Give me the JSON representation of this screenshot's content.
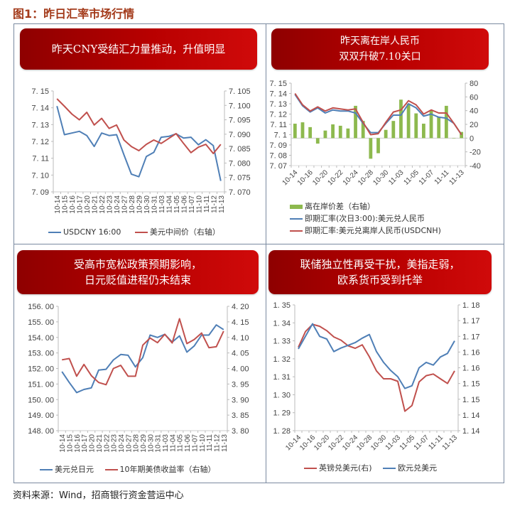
{
  "figure_title": "图1：昨日汇率市场行情",
  "source": "资料来源：Wind，招商银行资金营运中心",
  "colors": {
    "banner_red": "#b80000",
    "blue": "#4f7fb6",
    "red": "#c0504d",
    "green": "#8db94e"
  },
  "panels": [
    {
      "title": [
        "昨天CNY受结汇力量推动，升值明显"
      ]
    },
    {
      "title": [
        "昨天离在岸人民币",
        "双双升破7.10关口"
      ]
    },
    {
      "title": [
        "受高市宽松政策预期影响，",
        "日元贬值进程仍未结束"
      ]
    },
    {
      "title": [
        "联储独立性再受干扰，美指走弱，",
        "欧系货币受到托举"
      ]
    }
  ],
  "chart_data": [
    {
      "type": "line",
      "title": "昨天CNY受结汇力量推动，升值明显",
      "categories": [
        "10-14",
        "10-15",
        "10-16",
        "10-17",
        "10-20",
        "10-21",
        "10-22",
        "10-23",
        "10-24",
        "10-27",
        "10-28",
        "10-29",
        "10-30",
        "10-31",
        "11-03",
        "11-04",
        "11-05",
        "11-06",
        "11-07",
        "11-10",
        "11-11",
        "11-12",
        "11-13"
      ],
      "y_ticks": [
        "7.15",
        "7.14",
        "7.13",
        "7.12",
        "7.11",
        "7.10",
        "7.09"
      ],
      "y2_ticks": [
        "7.105",
        "7.100",
        "7.095",
        "7.090",
        "7.085",
        "7.080",
        "7.075",
        "7.070"
      ],
      "ylim": [
        7.09,
        7.15
      ],
      "y2lim": [
        7.07,
        7.105
      ],
      "series": [
        {
          "name": "USDCNY 16:00",
          "axis": "left",
          "color": "#4f7fb6",
          "values": [
            7.141,
            7.124,
            7.125,
            7.126,
            7.1235,
            7.117,
            7.125,
            7.1235,
            7.124,
            7.112,
            7.1005,
            7.099,
            7.111,
            7.1135,
            7.1225,
            7.123,
            7.1245,
            7.122,
            7.1225,
            7.118,
            7.121,
            7.1175,
            7.0965
          ]
        },
        {
          "name": "美元中间价（右轴）",
          "axis": "right",
          "color": "#c0504d",
          "values": [
            7.1023,
            7.0997,
            7.097,
            7.095,
            7.0976,
            7.0932,
            7.0955,
            7.092,
            7.0932,
            7.088,
            7.0857,
            7.0843,
            7.0865,
            7.088,
            7.0868,
            7.0885,
            7.0902,
            7.0868,
            7.0836,
            7.0855,
            7.0865,
            7.0833,
            7.0865
          ]
        }
      ],
      "legend": [
        "USDCNY 16:00",
        "美元中间价（右轴）"
      ]
    },
    {
      "type": "bar+line",
      "title": "昨天离在岸人民币双双升破7.10关口",
      "categories": [
        "10-14",
        "10-15",
        "10-16",
        "10-17",
        "10-20",
        "10-21",
        "10-22",
        "10-23",
        "10-24",
        "10-27",
        "10-28",
        "10-29",
        "10-30",
        "10-31",
        "11-03",
        "11-04",
        "11-05",
        "11-06",
        "11-07",
        "11-10",
        "11-11",
        "11-12",
        "11-13"
      ],
      "x_tick_labels": [
        "10-14",
        "10-16",
        "10-20",
        "10-22",
        "10-24",
        "10-28",
        "10-30",
        "11-03",
        "11-05",
        "11-07",
        "11-11",
        "11-13"
      ],
      "y_ticks": [
        "7.15",
        "7.14",
        "7.13",
        "7.12",
        "7.11",
        "7.1",
        "7.09",
        "7.08",
        "7.07"
      ],
      "y2_ticks": [
        "80",
        "60",
        "40",
        "20",
        "0",
        "-20",
        "-40"
      ],
      "ylim": [
        7.07,
        7.15
      ],
      "y2lim": [
        -40,
        80
      ],
      "series": [
        {
          "name": "离在岸价差（右轴）",
          "type": "bar",
          "axis": "right",
          "color": "#8db94e",
          "values": [
            21,
            23,
            16,
            -8,
            11,
            20,
            18,
            14,
            47,
            25,
            -30,
            -22,
            12,
            25,
            56,
            50,
            36,
            21,
            40,
            31,
            47,
            0,
            9
          ]
        },
        {
          "name": "即期汇率(次日3:00):美元兑人民币",
          "type": "line",
          "axis": "left",
          "color": "#4f7fb6",
          "values": [
            7.139,
            7.128,
            7.122,
            7.126,
            7.121,
            7.124,
            7.123,
            7.123,
            7.121,
            7.111,
            7.102,
            7.102,
            7.111,
            7.119,
            7.119,
            7.13,
            7.126,
            7.118,
            7.12,
            7.117,
            7.116,
            7.111,
            7.1
          ]
        },
        {
          "name": "即期汇率:美元兑离岸人民币(USDCNH)",
          "type": "line",
          "axis": "left",
          "color": "#c0504d",
          "values": [
            7.14,
            7.129,
            7.123,
            7.127,
            7.123,
            7.126,
            7.125,
            7.124,
            7.125,
            7.112,
            7.1,
            7.101,
            7.112,
            7.122,
            7.124,
            7.133,
            7.129,
            7.12,
            7.124,
            7.121,
            7.121,
            7.111,
            7.1
          ]
        }
      ],
      "legend": [
        "离在岸价差（右轴）",
        "即期汇率(次日3:00):美元兑人民币",
        "即期汇率:美元兑离岸人民币(USDCNH)"
      ]
    },
    {
      "type": "line",
      "title": "受高市宽松政策预期影响，日元贬值进程仍未结束",
      "categories": [
        "10-14",
        "10-15",
        "10-16",
        "10-17",
        "10-20",
        "10-21",
        "10-22",
        "10-23",
        "10-24",
        "10-27",
        "10-28",
        "10-29",
        "10-30",
        "10-31",
        "11-03",
        "11-04",
        "11-05",
        "11-06",
        "11-07",
        "11-10",
        "11-11",
        "11-12",
        "11-13"
      ],
      "y_ticks": [
        "156.00",
        "155.00",
        "154.00",
        "153.00",
        "152.00",
        "151.00",
        "150.00",
        "149.00",
        "148.00"
      ],
      "y2_ticks": [
        "4.20",
        "4.15",
        "4.10",
        "4.05",
        "4.00",
        "3.95",
        "3.90",
        "3.85",
        "3.80"
      ],
      "ylim": [
        148,
        156
      ],
      "y2lim": [
        3.8,
        4.2
      ],
      "series": [
        {
          "name": "美元兑日元",
          "axis": "left",
          "color": "#4f7fb6",
          "values": [
            151.8,
            151.1,
            150.45,
            150.65,
            150.75,
            151.9,
            151.95,
            152.55,
            152.9,
            152.85,
            152.1,
            152.7,
            154.15,
            154.0,
            154.2,
            153.7,
            154.1,
            153.05,
            153.45,
            154.15,
            154.15,
            154.8,
            154.5
          ]
        },
        {
          "name": "10年期美债收益率（右轴）",
          "axis": "right",
          "color": "#c0504d",
          "values": [
            4.028,
            4.032,
            3.975,
            4.013,
            3.977,
            3.955,
            3.948,
            4.0,
            4.01,
            3.975,
            3.975,
            4.075,
            4.098,
            4.083,
            4.11,
            4.082,
            4.16,
            4.08,
            4.093,
            4.114,
            4.067,
            4.07,
            4.12
          ]
        }
      ],
      "legend": [
        "美元兑日元",
        "10年期美债收益率（右轴）"
      ]
    },
    {
      "type": "line",
      "title": "联储独立性再受干扰，美指走弱，欧系货币受到托举",
      "categories": [
        "10-14",
        "10-15",
        "10-16",
        "10-17",
        "10-20",
        "10-21",
        "10-22",
        "10-23",
        "10-24",
        "10-27",
        "10-28",
        "10-29",
        "10-30",
        "10-31",
        "11-03",
        "11-04",
        "11-05",
        "11-06",
        "11-07",
        "11-10",
        "11-11",
        "11-12",
        "11-13"
      ],
      "x_tick_labels": [
        "10-14",
        "10-16",
        "10-20",
        "10-22",
        "10-24",
        "10-28",
        "10-30",
        "11-03",
        "11-05",
        "11-07",
        "11-11",
        "11-13"
      ],
      "y_ticks": [
        "1.35",
        "1.34",
        "1.33",
        "1.32",
        "1.31",
        "1.30",
        "1.29",
        "1.28"
      ],
      "y2_ticks": [
        "1.18",
        "1.17",
        "1.17",
        "1.16",
        "1.16",
        "1.15",
        "1.15",
        "1.14",
        "1.14"
      ],
      "ylim": [
        1.28,
        1.35
      ],
      "y2lim": [
        1.14,
        1.18
      ],
      "series": [
        {
          "name": "英镑兑美元(右)",
          "axis": "right",
          "color": "#c0504d",
          "values": [
            1.1665,
            1.1715,
            1.1738,
            1.1732,
            1.1718,
            1.1698,
            1.1688,
            1.167,
            1.1662,
            1.1673,
            1.1635,
            1.159,
            1.1565,
            1.1565,
            1.1557,
            1.1462,
            1.148,
            1.1555,
            1.1575,
            1.158,
            1.1565,
            1.155,
            1.159
          ]
        },
        {
          "name": "欧元兑美元",
          "axis": "left",
          "color": "#4f7fb6",
          "values": [
            1.3255,
            1.3325,
            1.3395,
            1.3325,
            1.331,
            1.324,
            1.326,
            1.3275,
            1.329,
            1.3315,
            1.3335,
            1.324,
            1.318,
            1.3135,
            1.31,
            1.3035,
            1.305,
            1.315,
            1.318,
            1.3165,
            1.321,
            1.323,
            1.33
          ]
        }
      ],
      "legend": [
        "英镑兑美元(右)",
        "欧元兑美元"
      ]
    }
  ]
}
